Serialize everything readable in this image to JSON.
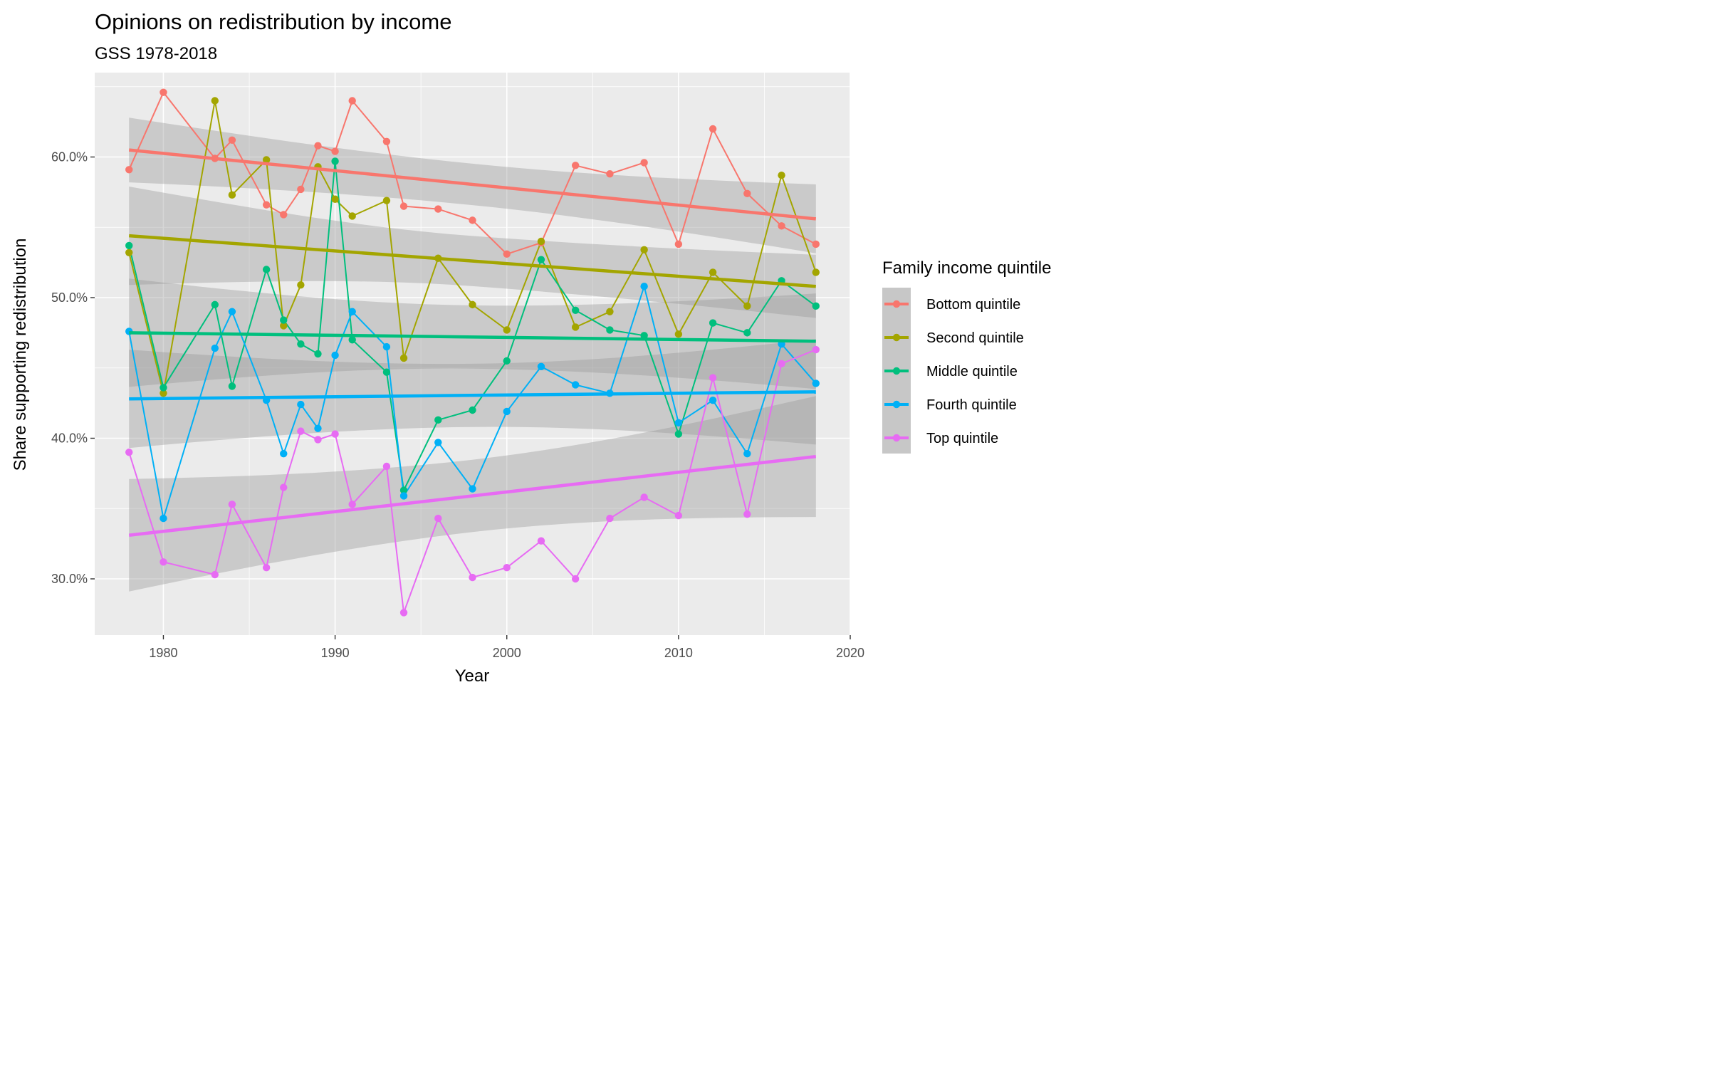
{
  "chart_data": {
    "type": "line",
    "title": "Opinions on redistribution by income",
    "subtitle": "GSS 1978-2018",
    "xlabel": "Year",
    "ylabel": "Share supporting redistribution",
    "xlim": [
      1976,
      2020
    ],
    "ylim": [
      0.26,
      0.66
    ],
    "x_ticks": [
      1980,
      1990,
      2000,
      2010,
      2020
    ],
    "x_tick_labels": [
      "1980",
      "1990",
      "2000",
      "2010",
      "2020"
    ],
    "y_ticks": [
      0.3,
      0.4,
      0.5,
      0.6
    ],
    "y_tick_labels": [
      "30.0%",
      "40.0%",
      "50.0%",
      "60.0%"
    ],
    "grid": true,
    "legend": {
      "title": "Family income quintile",
      "placement": "right"
    },
    "overlays": [
      "linear trend line with confidence band per series"
    ],
    "series": [
      {
        "name": "Bottom quintile",
        "color": "#F8766D",
        "x": [
          1978,
          1980,
          1983,
          1984,
          1986,
          1987,
          1988,
          1989,
          1990,
          1991,
          1993,
          1994,
          1996,
          1998,
          2000,
          2002,
          2004,
          2006,
          2008,
          2010,
          2012,
          2014,
          2016,
          2018
        ],
        "y": [
          0.591,
          0.646,
          0.599,
          0.612,
          0.566,
          0.559,
          0.577,
          0.608,
          0.604,
          0.64,
          0.611,
          0.565,
          0.563,
          0.555,
          0.531,
          0.539,
          0.594,
          0.588,
          0.596,
          0.538,
          0.62,
          0.574,
          0.551,
          0.538
        ],
        "trend": [
          0.605,
          0.556
        ],
        "band": {
          "low": [
            0.583,
            0.533
          ],
          "high": [
            0.629,
            0.582
          ]
        }
      },
      {
        "name": "Second quintile",
        "color": "#A3A500",
        "x": [
          1978,
          1980,
          1983,
          1984,
          1986,
          1987,
          1988,
          1989,
          1990,
          1991,
          1993,
          1994,
          1996,
          1998,
          2000,
          2002,
          2004,
          2006,
          2008,
          2010,
          2012,
          2014,
          2016,
          2018
        ],
        "y": [
          0.532,
          0.432,
          0.64,
          0.573,
          0.598,
          0.48,
          0.509,
          0.593,
          0.57,
          0.558,
          0.569,
          0.457,
          0.528,
          0.495,
          0.477,
          0.54,
          0.479,
          0.49,
          0.534,
          0.474,
          0.518,
          0.494,
          0.587,
          0.518
        ],
        "trend": [
          0.544,
          0.508
        ],
        "band": {
          "low": [
            0.515,
            0.486
          ],
          "high": [
            0.585,
            0.531
          ]
        }
      },
      {
        "name": "Middle quintile",
        "color": "#00BF7D",
        "x": [
          1978,
          1980,
          1983,
          1984,
          1986,
          1987,
          1988,
          1989,
          1990,
          1991,
          1993,
          1994,
          1996,
          1998,
          2000,
          2002,
          2004,
          2006,
          2008,
          2010,
          2012,
          2014,
          2016,
          2018
        ],
        "y": [
          0.537,
          0.436,
          0.495,
          0.437,
          0.52,
          0.484,
          0.467,
          0.46,
          0.597,
          0.47,
          0.447,
          0.363,
          0.413,
          0.42,
          0.455,
          0.527,
          0.491,
          0.477,
          0.473,
          0.403,
          0.482,
          0.475,
          0.512,
          0.494
        ],
        "trend": [
          0.475,
          0.469
        ],
        "band": {
          "low": [
            0.437,
            0.435
          ],
          "high": [
            0.514,
            0.503
          ]
        }
      },
      {
        "name": "Fourth quintile",
        "color": "#00B0F6",
        "x": [
          1978,
          1980,
          1983,
          1984,
          1986,
          1987,
          1988,
          1989,
          1990,
          1991,
          1993,
          1994,
          1996,
          1998,
          2000,
          2002,
          2004,
          2006,
          2008,
          2010,
          2012,
          2014,
          2016,
          2018
        ],
        "y": [
          0.476,
          0.343,
          0.464,
          0.49,
          0.427,
          0.389,
          0.424,
          0.407,
          0.459,
          0.49,
          0.465,
          0.359,
          0.397,
          0.364,
          0.419,
          0.451,
          0.438,
          0.432,
          0.508,
          0.411,
          0.427,
          0.389,
          0.467,
          0.439
        ],
        "trend": [
          0.428,
          0.433
        ],
        "band": {
          "low": [
            0.393,
            0.395
          ],
          "high": [
            0.463,
            0.47
          ]
        }
      },
      {
        "name": "Top quintile",
        "color": "#E76BF3",
        "x": [
          1978,
          1980,
          1983,
          1984,
          1986,
          1987,
          1988,
          1989,
          1990,
          1991,
          1993,
          1994,
          1996,
          1998,
          2000,
          2002,
          2004,
          2006,
          2008,
          2010,
          2012,
          2014,
          2016,
          2018
        ],
        "y": [
          0.39,
          0.312,
          0.303,
          0.353,
          0.308,
          0.365,
          0.405,
          0.399,
          0.403,
          0.353,
          0.38,
          0.276,
          0.343,
          0.301,
          0.308,
          0.327,
          0.3,
          0.343,
          0.358,
          0.345,
          0.443,
          0.346,
          0.453,
          0.463
        ],
        "trend": [
          0.331,
          0.387
        ],
        "band": {
          "low": [
            0.29,
            0.344
          ],
          "high": [
            0.37,
            0.43
          ]
        }
      }
    ]
  }
}
